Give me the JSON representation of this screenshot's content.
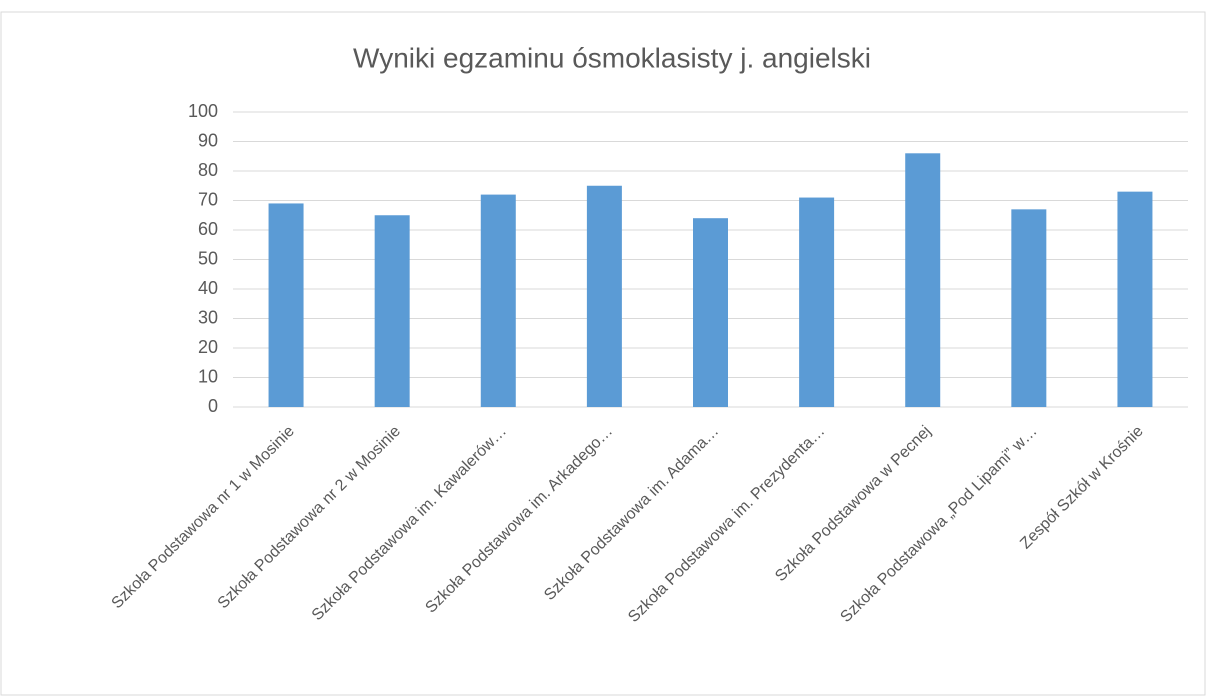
{
  "chart_data": {
    "type": "bar",
    "title": "Wyniki egzaminu ósmoklasisty j. angielski",
    "categories": [
      "Szkoła Podstawowa nr 1 w Mosinie",
      "Szkoła Podstawowa nr 2 w Mosinie",
      "Szkoła Podstawowa im. Kawalerów…",
      "Szkoła Podstawowa im. Arkadego…",
      "Szkoła Podstawowa im. Adama…",
      "Szkoła Podstawowa im. Prezydenta…",
      "Szkoła Podstawowa w Pecnej",
      "Szkoła Podstawowa „Pod Lipami” w…",
      "Zespół Szkół w Krośnie"
    ],
    "values": [
      69,
      65,
      72,
      75,
      64,
      71,
      86,
      67,
      73
    ],
    "color": "#5b9bd5",
    "ylim": [
      0,
      100
    ],
    "yticks": [
      0,
      10,
      20,
      30,
      40,
      50,
      60,
      70,
      80,
      90,
      100
    ],
    "grid": true
  }
}
